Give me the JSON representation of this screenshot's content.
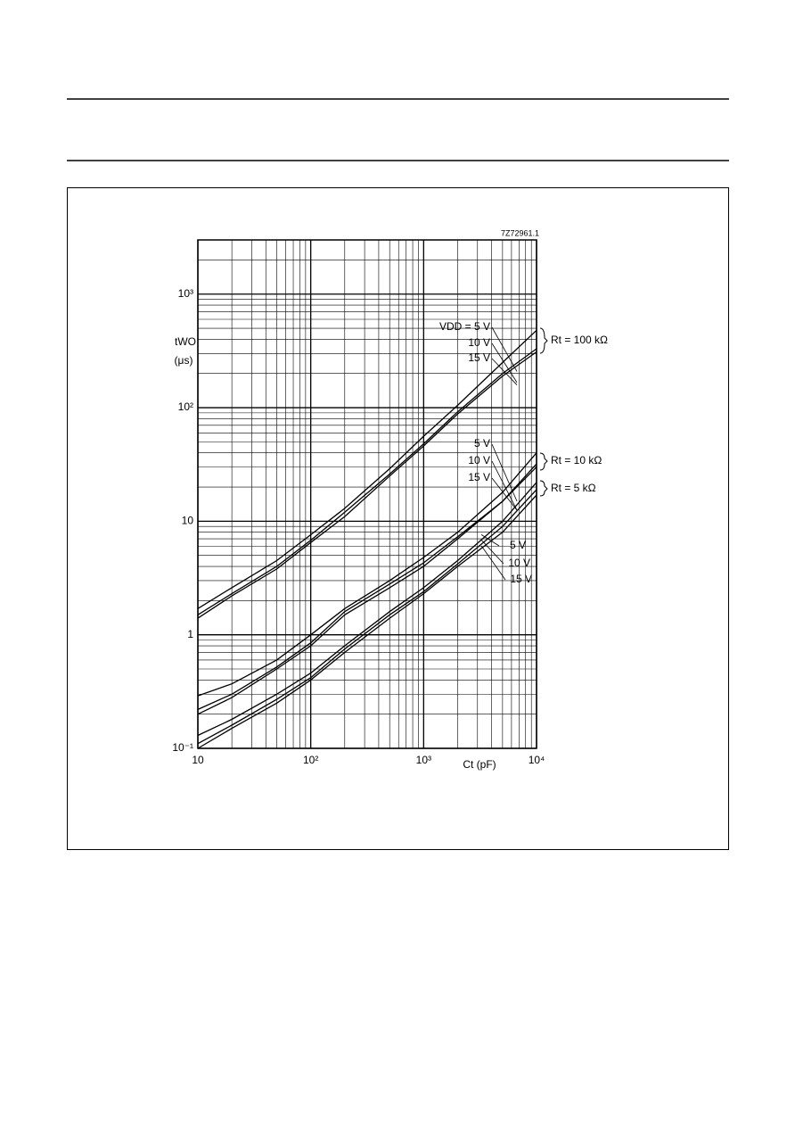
{
  "chart_data": {
    "type": "line",
    "chart_id": "7Z72961.1",
    "y_label": "tWO",
    "y_unit": "(μs)",
    "x_label": "Ct (pF)",
    "log_x": true,
    "log_y": true,
    "grid": true,
    "color": "#000000",
    "xlim": [
      10,
      10000
    ],
    "ylim": [
      0.1,
      3000
    ],
    "xticks": [
      10,
      {
        "value": 100,
        "label": "10²"
      },
      {
        "value": 1000,
        "label": "10³"
      },
      {
        "value": 10000,
        "label": "10⁴"
      }
    ],
    "yticks": [
      {
        "value": 0.1,
        "label": "10⁻¹"
      },
      1,
      10,
      {
        "value": 100,
        "label": "10²"
      },
      {
        "value": 1000,
        "label": "10³"
      }
    ],
    "x": [
      10,
      20,
      50,
      100,
      200,
      500,
      1000,
      2000,
      5000,
      10000
    ],
    "groups": [
      "Rt = 100 kΩ",
      "Rt = 10 kΩ",
      "Rt = 5 kΩ"
    ],
    "series": [
      {
        "name": "VDD = 5 V",
        "group": 0,
        "values": [
          1.7,
          2.6,
          4.5,
          7.6,
          13,
          29,
          56,
          105,
          250,
          480
        ]
      },
      {
        "name": "10 V",
        "group": 0,
        "values": [
          1.5,
          2.3,
          4.0,
          6.8,
          12,
          26,
          48,
          92,
          200,
          330
        ]
      },
      {
        "name": "15 V",
        "group": 0,
        "values": [
          1.4,
          2.2,
          3.8,
          6.5,
          11,
          25,
          46,
          88,
          190,
          310
        ]
      },
      {
        "name": "5 V",
        "group": 1,
        "values": [
          0.29,
          0.37,
          0.6,
          1.0,
          1.7,
          3.0,
          4.8,
          8,
          18,
          40
        ]
      },
      {
        "name": "10 V",
        "group": 1,
        "values": [
          0.22,
          0.3,
          0.52,
          0.85,
          1.6,
          2.8,
          4.3,
          7.3,
          15,
          32
        ]
      },
      {
        "name": "15 V",
        "group": 1,
        "values": [
          0.2,
          0.28,
          0.5,
          0.8,
          1.5,
          2.6,
          4.0,
          7,
          15,
          30
        ]
      },
      {
        "name": "5 V",
        "group": 2,
        "values": [
          0.13,
          0.18,
          0.3,
          0.46,
          0.8,
          1.6,
          2.6,
          4.5,
          10,
          22
        ]
      },
      {
        "name": "10 V",
        "group": 2,
        "values": [
          0.11,
          0.16,
          0.27,
          0.42,
          0.75,
          1.5,
          2.4,
          4.2,
          9,
          19
        ]
      },
      {
        "name": "15 V",
        "group": 2,
        "values": [
          0.1,
          0.15,
          0.25,
          0.4,
          0.7,
          1.4,
          2.3,
          4.0,
          8,
          17
        ]
      }
    ]
  }
}
